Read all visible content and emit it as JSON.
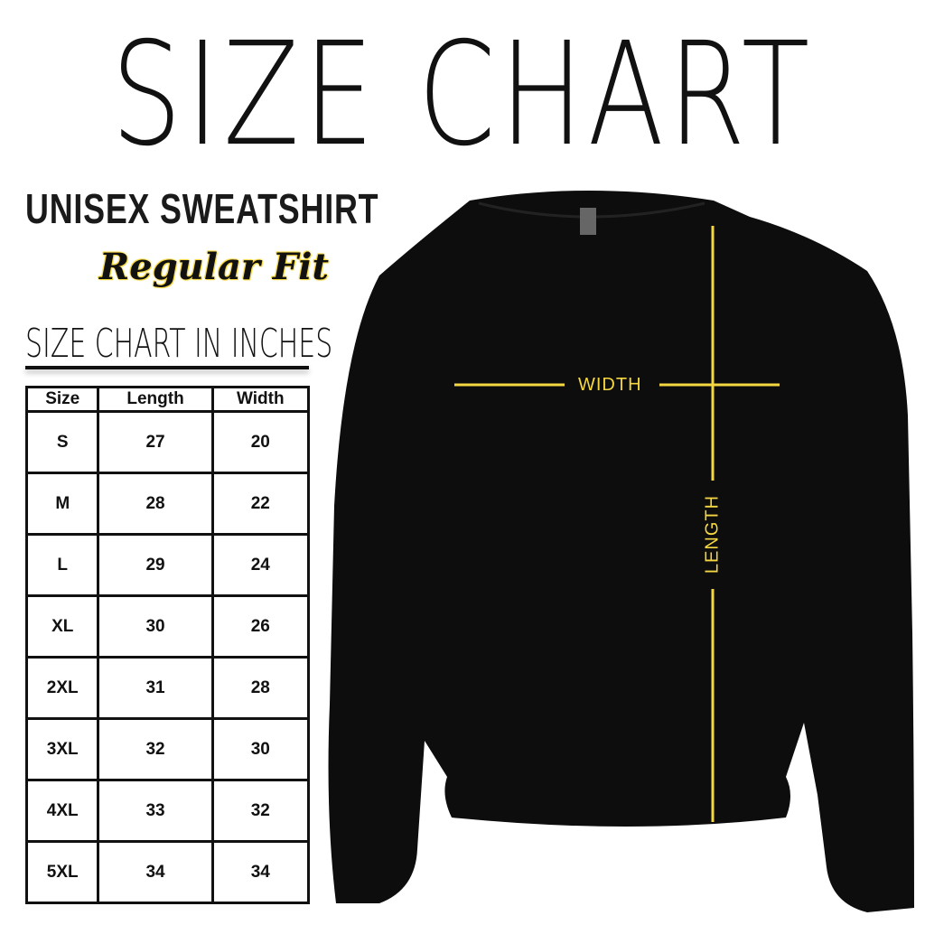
{
  "title": "SIZE CHART",
  "product": "UNISEX SWEATSHIRT",
  "fit": "Regular Fit",
  "subtitle": "SIZE CHART IN INCHES",
  "table": {
    "headers": [
      "Size",
      "Length",
      "Width"
    ],
    "rows": [
      [
        "S",
        "27",
        "20"
      ],
      [
        "M",
        "28",
        "22"
      ],
      [
        "L",
        "29",
        "24"
      ],
      [
        "XL",
        "30",
        "26"
      ],
      [
        "2XL",
        "31",
        "28"
      ],
      [
        "3XL",
        "32",
        "30"
      ],
      [
        "4XL",
        "33",
        "32"
      ],
      [
        "5XL",
        "34",
        "34"
      ]
    ]
  },
  "diagram": {
    "width_label": "WIDTH",
    "length_label": "LENGTH",
    "line_color": "#f5d742",
    "garment_color": "#0d0d0d"
  }
}
